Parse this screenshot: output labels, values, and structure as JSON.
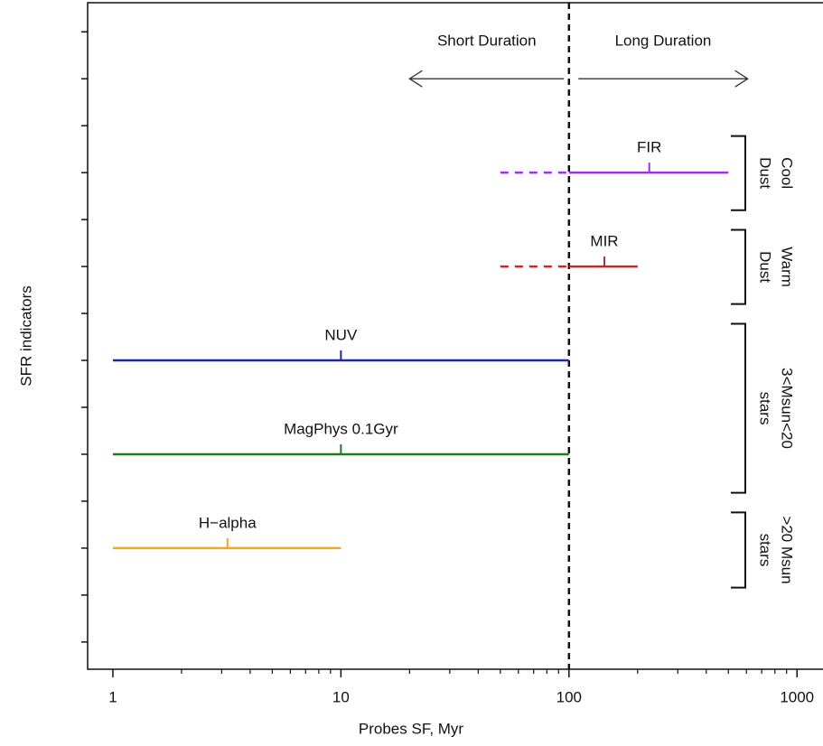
{
  "chart_data": {
    "type": "range",
    "x_label": "Probes SF, Myr",
    "y_label": "SFR indicators",
    "xscale": "log",
    "xlim": [
      0.775,
      1300
    ],
    "xticks": [
      1,
      10,
      100,
      1000
    ],
    "xminorticks": [
      2,
      3,
      4,
      5,
      6,
      7,
      8,
      9,
      20,
      30,
      40,
      50,
      60,
      70,
      80,
      90,
      200,
      300,
      400,
      500,
      600,
      700,
      800,
      900
    ],
    "ylim": [
      -0.29,
      6.81
    ],
    "yticks": [
      0,
      0.5,
      1,
      1.5,
      2,
      2.5,
      3,
      3.5,
      4,
      4.5,
      5,
      5.5,
      6,
      6.5
    ],
    "divider_x": 100,
    "series": [
      {
        "name": "FIR",
        "color": "#a030e8",
        "y": 5,
        "dashed": [
          50,
          100
        ],
        "solid": [
          100,
          500
        ],
        "marker": 225
      },
      {
        "name": "MIR",
        "color": "#b03030",
        "y": 4,
        "dashed": [
          50,
          100
        ],
        "solid": [
          100,
          200
        ],
        "marker": 143
      },
      {
        "name": "NUV",
        "color": "#1a2a9a",
        "y": 3,
        "solid": [
          1,
          100
        ],
        "marker": 10
      },
      {
        "name": "MagPhys 0.1Gyr",
        "color": "#1f7a1f",
        "y": 2,
        "solid": [
          1,
          100
        ],
        "marker": 10
      },
      {
        "name": "H−alpha",
        "color": "#f5a623",
        "y": 1,
        "solid": [
          1,
          10
        ],
        "marker": 3.18
      }
    ],
    "arrows": [
      {
        "label": "Short Duration",
        "from": 95,
        "to": 20,
        "y": 6
      },
      {
        "label": "Long Duration",
        "from": 110,
        "to": 608,
        "y": 6
      }
    ],
    "groups": [
      {
        "lines": [
          "Cool",
          "Dust"
        ],
        "y_range": [
          4.6,
          5.39
        ]
      },
      {
        "lines": [
          "Warm",
          "Dust"
        ],
        "y_range": [
          3.6,
          4.39
        ]
      },
      {
        "lines": [
          "3<Msun<20",
          "stars"
        ],
        "y_range": [
          1.59,
          3.39
        ]
      },
      {
        "lines": [
          ">20 Msun",
          "stars"
        ],
        "y_range": [
          0.58,
          1.38
        ]
      }
    ]
  }
}
